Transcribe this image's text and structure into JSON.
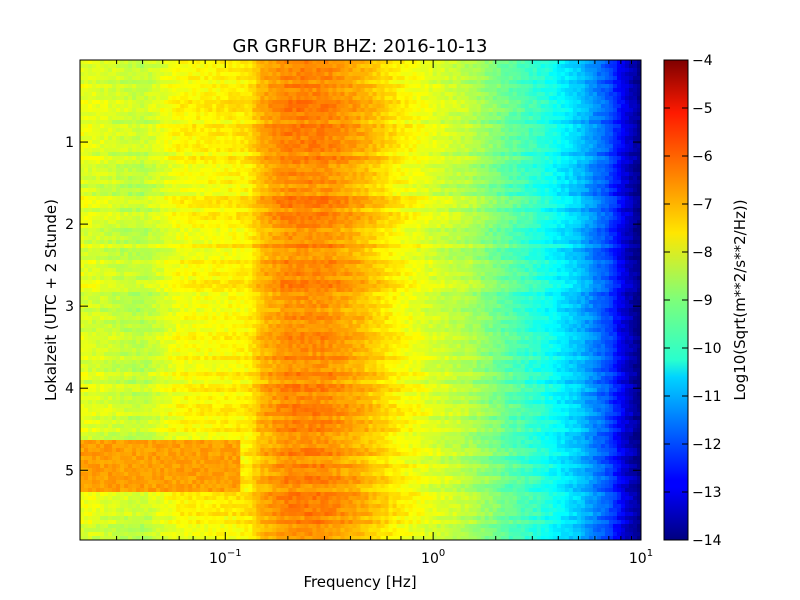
{
  "chart_data": {
    "type": "heatmap",
    "title": "GR GRFUR BHZ: 2016-10-13",
    "xlabel": "Frequency [Hz]",
    "ylabel": "Lokalzeit (UTC + 2 Stunde)",
    "x_scale": "log",
    "xlim": [
      0.02,
      10
    ],
    "y_inverted": true,
    "ylim": [
      0,
      5.85
    ],
    "x_ticks": [
      {
        "value": 0.1,
        "base": "10",
        "exp": "−1"
      },
      {
        "value": 1,
        "base": "10",
        "exp": "0"
      },
      {
        "value": 10,
        "base": "10",
        "exp": "1"
      }
    ],
    "y_ticks": [
      {
        "value": 1,
        "label": "1"
      },
      {
        "value": 2,
        "label": "2"
      },
      {
        "value": 3,
        "label": "3"
      },
      {
        "value": 4,
        "label": "4"
      },
      {
        "value": 5,
        "label": "5"
      }
    ],
    "grid": false,
    "colormap": "jet",
    "colorbar": {
      "label": "Log10(Sqrt(m**2/s**2/Hz))",
      "range": [
        -14,
        -4
      ],
      "ticks": [
        {
          "value": -4,
          "label": "−4"
        },
        {
          "value": -5,
          "label": "−5"
        },
        {
          "value": -6,
          "label": "−6"
        },
        {
          "value": -7,
          "label": "−7"
        },
        {
          "value": -8,
          "label": "−8"
        },
        {
          "value": -9,
          "label": "−9"
        },
        {
          "value": -10,
          "label": "−10"
        },
        {
          "value": -11,
          "label": "−11"
        },
        {
          "value": -12,
          "label": "−12"
        },
        {
          "value": -13,
          "label": "−13"
        },
        {
          "value": -14,
          "label": "−14"
        }
      ]
    },
    "frequency_profile": [
      {
        "f": 0.02,
        "v": -8.0
      },
      {
        "f": 0.04,
        "v": -8.4
      },
      {
        "f": 0.06,
        "v": -7.8
      },
      {
        "f": 0.1,
        "v": -7.7
      },
      {
        "f": 0.13,
        "v": -7.6
      },
      {
        "f": 0.15,
        "v": -7.0
      },
      {
        "f": 0.2,
        "v": -6.6
      },
      {
        "f": 0.3,
        "v": -6.6
      },
      {
        "f": 0.45,
        "v": -7.0
      },
      {
        "f": 0.7,
        "v": -7.7
      },
      {
        "f": 1.0,
        "v": -8.1
      },
      {
        "f": 1.5,
        "v": -8.5
      },
      {
        "f": 2.2,
        "v": -9.2
      },
      {
        "f": 3.5,
        "v": -10.0
      },
      {
        "f": 5.0,
        "v": -10.8
      },
      {
        "f": 7.0,
        "v": -12.0
      },
      {
        "f": 8.5,
        "v": -13.2
      },
      {
        "f": 10.0,
        "v": -14.0
      }
    ],
    "event": {
      "time_start": 4.65,
      "time_end": 5.25,
      "f_max": 0.12,
      "value": -6.8
    }
  }
}
